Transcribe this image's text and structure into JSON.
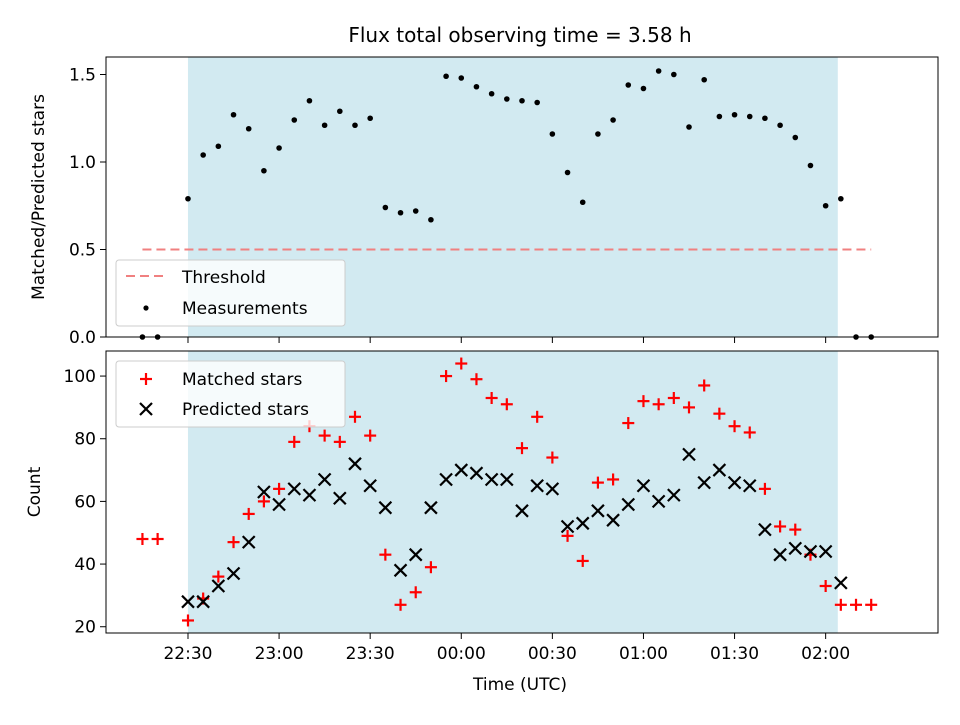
{
  "title": "Flux total observing time = 3.58 h",
  "colors": {
    "shade": "#add8e6",
    "threshold": "#f08080",
    "measure": "#000000",
    "matched": "#ff0000",
    "predicted": "#000000"
  },
  "chart_data": [
    {
      "type": "scatter",
      "ylabel": "Matched/Predicted stars",
      "ylim": [
        0,
        1.6
      ],
      "yticks": [
        0.0,
        0.5,
        1.0,
        1.5
      ],
      "ytick_labels": [
        "0.0",
        "0.5",
        "1.0",
        "1.5"
      ],
      "xlim": [
        "22:03",
        "02:37"
      ],
      "shaded_span": [
        "22:30",
        "02:04"
      ],
      "threshold": {
        "label": "Threshold",
        "value": 0.5,
        "x": [
          "22:15",
          "02:15"
        ]
      },
      "legend": {
        "position": "lower-left",
        "entries": [
          "Threshold",
          "Measurements"
        ]
      },
      "series": [
        {
          "name": "Measurements",
          "marker": "dot",
          "x": [
            "22:15",
            "22:20",
            "22:30",
            "22:35",
            "22:40",
            "22:45",
            "22:50",
            "22:55",
            "23:00",
            "23:05",
            "23:10",
            "23:15",
            "23:20",
            "23:25",
            "23:30",
            "23:35",
            "23:40",
            "23:45",
            "23:50",
            "23:55",
            "00:00",
            "00:05",
            "00:10",
            "00:15",
            "00:20",
            "00:25",
            "00:30",
            "00:35",
            "00:40",
            "00:45",
            "00:50",
            "00:55",
            "01:00",
            "01:05",
            "01:10",
            "01:15",
            "01:20",
            "01:25",
            "01:30",
            "01:35",
            "01:40",
            "01:45",
            "01:50",
            "01:55",
            "02:00",
            "02:05",
            "02:10",
            "02:15"
          ],
          "y": [
            0.0,
            0.0,
            0.79,
            1.04,
            1.09,
            1.27,
            1.19,
            0.95,
            1.08,
            1.24,
            1.35,
            1.21,
            1.29,
            1.21,
            1.25,
            0.74,
            0.71,
            0.72,
            0.67,
            1.49,
            1.48,
            1.43,
            1.39,
            1.36,
            1.35,
            1.34,
            1.16,
            0.94,
            0.77,
            1.16,
            1.24,
            1.44,
            1.42,
            1.52,
            1.5,
            1.2,
            1.47,
            1.26,
            1.27,
            1.26,
            1.25,
            1.21,
            1.14,
            0.98,
            0.75,
            0.79,
            0.0,
            0.0
          ]
        }
      ]
    },
    {
      "type": "scatter",
      "xlabel": "Time (UTC)",
      "ylabel": "Count",
      "ylim": [
        18,
        108
      ],
      "yticks": [
        20,
        40,
        60,
        80,
        100
      ],
      "ytick_labels": [
        "20",
        "40",
        "60",
        "80",
        "100"
      ],
      "xlim": [
        "22:03",
        "02:37"
      ],
      "xticks": [
        "22:30",
        "23:00",
        "23:30",
        "00:00",
        "00:30",
        "01:00",
        "01:30",
        "02:00"
      ],
      "xtick_labels": [
        "22:30",
        "23:00",
        "23:30",
        "00:00",
        "00:30",
        "01:00",
        "01:30",
        "02:00"
      ],
      "shaded_span": [
        "22:30",
        "02:04"
      ],
      "legend": {
        "position": "upper-left",
        "entries": [
          "Matched stars",
          "Predicted stars"
        ]
      },
      "series": [
        {
          "name": "Matched stars",
          "marker": "plus",
          "x": [
            "22:15",
            "22:20",
            "22:30",
            "22:35",
            "22:40",
            "22:45",
            "22:50",
            "22:55",
            "23:00",
            "23:05",
            "23:10",
            "23:15",
            "23:20",
            "23:25",
            "23:30",
            "23:35",
            "23:40",
            "23:45",
            "23:50",
            "23:55",
            "00:00",
            "00:05",
            "00:10",
            "00:15",
            "00:20",
            "00:25",
            "00:30",
            "00:35",
            "00:40",
            "00:45",
            "00:50",
            "00:55",
            "01:00",
            "01:05",
            "01:10",
            "01:15",
            "01:20",
            "01:25",
            "01:30",
            "01:35",
            "01:40",
            "01:45",
            "01:50",
            "01:55",
            "02:00",
            "02:05",
            "02:10",
            "02:15"
          ],
          "y": [
            48,
            48,
            22,
            29,
            36,
            47,
            56,
            60,
            64,
            79,
            84,
            81,
            79,
            87,
            81,
            43,
            27,
            31,
            39,
            100,
            104,
            99,
            93,
            91,
            77,
            87,
            74,
            49,
            41,
            66,
            67,
            85,
            92,
            91,
            93,
            90,
            97,
            88,
            84,
            82,
            64,
            52,
            51,
            43,
            33,
            27,
            27,
            27
          ]
        },
        {
          "name": "Predicted stars",
          "marker": "x",
          "x": [
            "22:30",
            "22:35",
            "22:40",
            "22:45",
            "22:50",
            "22:55",
            "23:00",
            "23:05",
            "23:10",
            "23:15",
            "23:20",
            "23:25",
            "23:30",
            "23:35",
            "23:40",
            "23:45",
            "23:50",
            "23:55",
            "00:00",
            "00:05",
            "00:10",
            "00:15",
            "00:20",
            "00:25",
            "00:30",
            "00:35",
            "00:40",
            "00:45",
            "00:50",
            "00:55",
            "01:00",
            "01:05",
            "01:10",
            "01:15",
            "01:20",
            "01:25",
            "01:30",
            "01:35",
            "01:40",
            "01:45",
            "01:50",
            "01:55",
            "02:00",
            "02:05"
          ],
          "y": [
            28,
            28,
            33,
            37,
            47,
            63,
            59,
            64,
            62,
            67,
            61,
            72,
            65,
            58,
            38,
            43,
            58,
            67,
            70,
            69,
            67,
            67,
            57,
            65,
            64,
            52,
            53,
            57,
            54,
            59,
            65,
            60,
            62,
            75,
            66,
            70,
            66,
            65,
            51,
            43,
            45,
            44,
            44,
            34
          ]
        }
      ]
    }
  ]
}
